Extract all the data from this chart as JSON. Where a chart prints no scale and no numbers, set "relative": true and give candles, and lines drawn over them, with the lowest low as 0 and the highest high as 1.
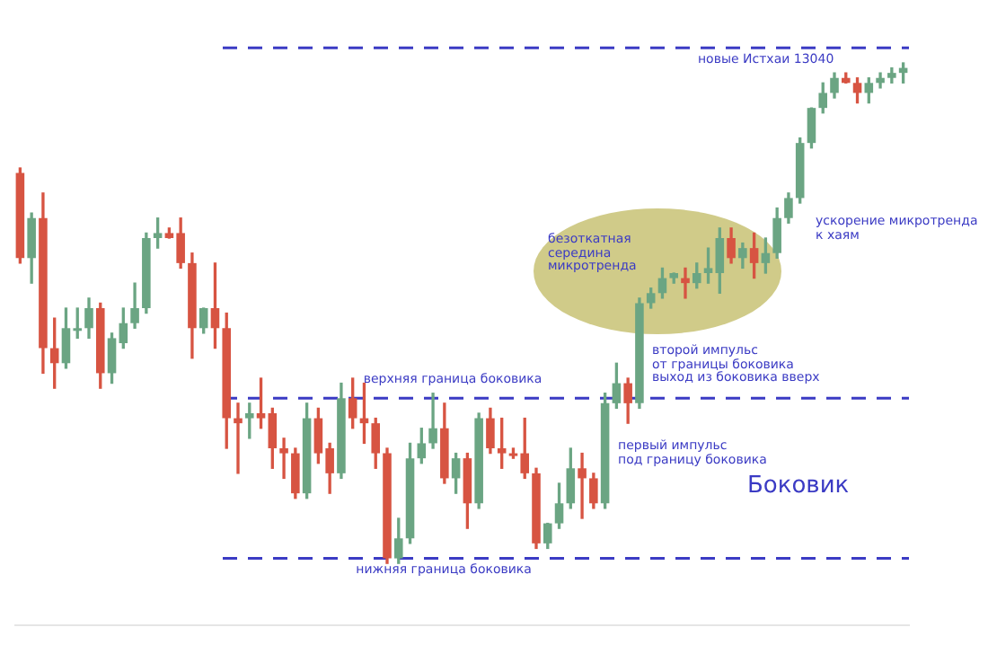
{
  "chart_data": {
    "type": "candlestick",
    "relative": true,
    "categories": [
      null,
      null,
      null,
      null,
      null,
      null,
      null,
      null,
      null,
      null,
      null,
      null,
      null,
      null,
      null,
      null,
      null,
      null,
      null,
      null,
      null,
      null,
      null,
      null,
      null,
      null,
      null,
      null,
      null,
      null,
      null,
      null,
      null,
      null,
      null,
      null,
      null,
      null,
      null,
      null,
      null,
      null,
      null,
      null,
      null,
      null,
      null,
      null,
      null,
      null,
      null,
      null,
      null,
      null,
      null,
      null,
      null,
      null,
      null,
      null,
      null,
      null,
      null,
      null,
      null,
      null,
      null,
      null,
      null,
      null,
      null,
      null,
      null,
      null,
      null,
      null,
      null,
      null
    ],
    "ohlc": [
      [
        0.78,
        0.79,
        0.6,
        0.61
      ],
      [
        0.61,
        0.7,
        0.56,
        0.69
      ],
      [
        0.69,
        0.74,
        0.38,
        0.43
      ],
      [
        0.43,
        0.49,
        0.35,
        0.4
      ],
      [
        0.4,
        0.51,
        0.39,
        0.47
      ],
      [
        0.47,
        0.51,
        0.45,
        0.47
      ],
      [
        0.47,
        0.53,
        0.45,
        0.51
      ],
      [
        0.51,
        0.52,
        0.35,
        0.38
      ],
      [
        0.38,
        0.46,
        0.36,
        0.45
      ],
      [
        0.44,
        0.51,
        0.43,
        0.48
      ],
      [
        0.48,
        0.56,
        0.47,
        0.51
      ],
      [
        0.51,
        0.66,
        0.5,
        0.65
      ],
      [
        0.65,
        0.69,
        0.63,
        0.66
      ],
      [
        0.66,
        0.67,
        0.65,
        0.65
      ],
      [
        0.66,
        0.69,
        0.59,
        0.6
      ],
      [
        0.6,
        0.62,
        0.41,
        0.47
      ],
      [
        0.47,
        0.51,
        0.46,
        0.51
      ],
      [
        0.51,
        0.6,
        0.43,
        0.47
      ],
      [
        0.47,
        0.5,
        0.23,
        0.29
      ],
      [
        0.29,
        0.32,
        0.18,
        0.28
      ],
      [
        0.29,
        0.32,
        0.25,
        0.3
      ],
      [
        0.3,
        0.37,
        0.27,
        0.29
      ],
      [
        0.3,
        0.31,
        0.19,
        0.23
      ],
      [
        0.23,
        0.25,
        0.17,
        0.22
      ],
      [
        0.22,
        0.23,
        0.13,
        0.14
      ],
      [
        0.14,
        0.32,
        0.13,
        0.29
      ],
      [
        0.29,
        0.31,
        0.2,
        0.22
      ],
      [
        0.23,
        0.24,
        0.14,
        0.18
      ],
      [
        0.18,
        0.36,
        0.17,
        0.33
      ],
      [
        0.33,
        0.37,
        0.27,
        0.29
      ],
      [
        0.29,
        0.36,
        0.24,
        0.28
      ],
      [
        0.28,
        0.29,
        0.19,
        0.22
      ],
      [
        0.22,
        0.23,
        0,
        0.01
      ],
      [
        0.01,
        0.09,
        0,
        0.05
      ],
      [
        0.05,
        0.24,
        0.04,
        0.21
      ],
      [
        0.21,
        0.27,
        0.2,
        0.24
      ],
      [
        0.24,
        0.34,
        0.23,
        0.27
      ],
      [
        0.27,
        0.32,
        0.16,
        0.17
      ],
      [
        0.17,
        0.22,
        0.14,
        0.21
      ],
      [
        0.21,
        0.22,
        0.07,
        0.12
      ],
      [
        0.12,
        0.3,
        0.11,
        0.29
      ],
      [
        0.29,
        0.31,
        0.22,
        0.23
      ],
      [
        0.23,
        0.29,
        0.19,
        0.22
      ],
      [
        0.22,
        0.23,
        0.21,
        0.22
      ],
      [
        0.22,
        0.29,
        0.17,
        0.18
      ],
      [
        0.18,
        0.19,
        0.03,
        0.04
      ],
      [
        0.04,
        0.08,
        0.03,
        0.08
      ],
      [
        0.08,
        0.16,
        0.07,
        0.12
      ],
      [
        0.12,
        0.23,
        0.11,
        0.19
      ],
      [
        0.19,
        0.22,
        0.09,
        0.17
      ],
      [
        0.17,
        0.18,
        0.11,
        0.12
      ],
      [
        0.12,
        0.34,
        0.11,
        0.32
      ],
      [
        0.32,
        0.4,
        0.31,
        0.36
      ],
      [
        0.36,
        0.37,
        0.28,
        0.32
      ],
      [
        0.32,
        0.53,
        0.31,
        0.52
      ],
      [
        0.52,
        0.55,
        0.51,
        0.54
      ],
      [
        0.54,
        0.59,
        0.53,
        0.57
      ],
      [
        0.57,
        0.58,
        0.56,
        0.58
      ],
      [
        0.57,
        0.59,
        0.53,
        0.56
      ],
      [
        0.56,
        0.6,
        0.55,
        0.58
      ],
      [
        0.58,
        0.63,
        0.56,
        0.59
      ],
      [
        0.58,
        0.67,
        0.54,
        0.65
      ],
      [
        0.65,
        0.67,
        0.6,
        0.61
      ],
      [
        0.61,
        0.64,
        0.59,
        0.63
      ],
      [
        0.63,
        0.66,
        0.57,
        0.6
      ],
      [
        0.6,
        0.65,
        0.58,
        0.62
      ],
      [
        0.62,
        0.71,
        0.61,
        0.69
      ],
      [
        0.69,
        0.74,
        0.68,
        0.73
      ],
      [
        0.73,
        0.85,
        0.72,
        0.84
      ],
      [
        0.84,
        0.91,
        0.83,
        0.91
      ],
      [
        0.91,
        0.96,
        0.9,
        0.94
      ],
      [
        0.94,
        0.98,
        0.93,
        0.97
      ],
      [
        0.97,
        0.98,
        0.96,
        0.96
      ],
      [
        0.96,
        0.97,
        0.92,
        0.94
      ],
      [
        0.94,
        0.97,
        0.92,
        0.96
      ],
      [
        0.96,
        0.98,
        0.95,
        0.97
      ],
      [
        0.97,
        0.99,
        0.96,
        0.98
      ],
      [
        0.98,
        1,
        0.96,
        0.99
      ]
    ],
    "colors": [
      "#d75442",
      "#6ba583",
      "#d75442",
      "#d75442",
      "#6ba583",
      "#6ba583",
      "#6ba583",
      "#d75442",
      "#6ba583",
      "#6ba583",
      "#6ba583",
      "#6ba583",
      "#6ba583",
      "#d75442",
      "#d75442",
      "#d75442",
      "#6ba583",
      "#d75442",
      "#d75442",
      "#d75442",
      "#6ba583",
      "#d75442",
      "#d75442",
      "#d75442",
      "#d75442",
      "#6ba583",
      "#d75442",
      "#d75442",
      "#6ba583",
      "#d75442",
      "#d75442",
      "#d75442",
      "#d75442",
      "#6ba583",
      "#6ba583",
      "#6ba583",
      "#6ba583",
      "#d75442",
      "#6ba583",
      "#d75442",
      "#6ba583",
      "#d75442",
      "#d75442",
      "#d75442",
      "#d75442",
      "#d75442",
      "#6ba583",
      "#6ba583",
      "#6ba583",
      "#d75442",
      "#d75442",
      "#6ba583",
      "#6ba583",
      "#d75442",
      "#6ba583",
      "#6ba583",
      "#6ba583",
      "#6ba583",
      "#d75442",
      "#6ba583",
      "#6ba583",
      "#6ba583",
      "#d75442",
      "#6ba583",
      "#d75442",
      "#6ba583",
      "#6ba583",
      "#6ba583",
      "#6ba583",
      "#6ba583",
      "#6ba583",
      "#6ba583",
      "#d75442",
      "#d75442",
      "#6ba583",
      "#6ba583",
      "#6ba583",
      "#6ba583"
    ],
    "ref_lines": [
      {
        "axis": "y",
        "value": 1.03,
        "label": "новые Истхаи 13040",
        "color": "#3b3bc4",
        "line_style": "dashed"
      },
      {
        "axis": "y",
        "value": 0.33,
        "label": "верхняя граница боковика",
        "color": "#3b3bc4",
        "line_style": "dashed"
      },
      {
        "axis": "y",
        "value": 0.01,
        "label": "нижняя граница боковика",
        "color": "#3b3bc4",
        "line_style": "dashed"
      }
    ],
    "annotations": [
      "ускорение микротренда\nк хаям",
      "безоткатная\nсередина\nмикротренда",
      "второй импульс\nот границы боковика\nвыход из боковика вверх",
      "первый импульс\nпод границу боковика",
      "Боковик"
    ]
  }
}
